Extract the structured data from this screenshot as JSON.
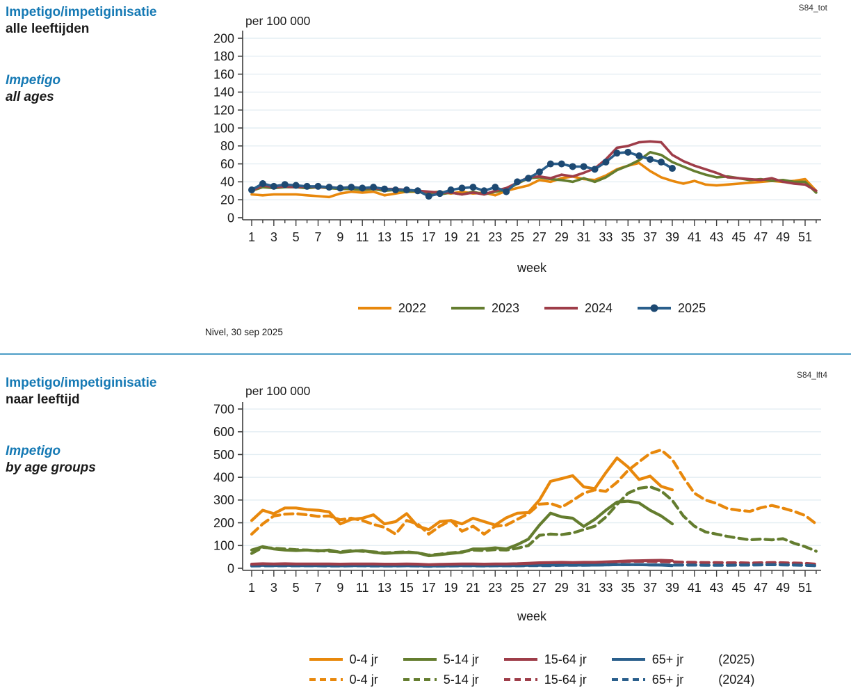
{
  "page": {
    "title_color": "#1579B4",
    "divider_color": "#4C9DC6",
    "grid_color": "#E4EEF3",
    "axis_color": "#3C3C3C"
  },
  "source_note": "Nivel, 30 sep 2025",
  "chart_data": [
    {
      "id": "impetigo-all-ages",
      "code_label": "S84_tot",
      "type": "line",
      "title_nl1": "Impetigo/impetiginisatie",
      "title_nl2": "alle leeftijden",
      "title_en1": "Impetigo",
      "title_en2": "all ages",
      "unit_label": "per 100 000",
      "xlabel": "week",
      "x_range": [
        1,
        52
      ],
      "xticks_major": [
        1,
        3,
        5,
        7,
        9,
        11,
        13,
        15,
        17,
        19,
        21,
        23,
        25,
        27,
        29,
        31,
        33,
        35,
        37,
        39,
        41,
        43,
        45,
        47,
        49,
        51
      ],
      "ylim": [
        0,
        200
      ],
      "ytick_step": 20,
      "grid": "horizontal",
      "legend_position": "bottom",
      "series": [
        {
          "name": "2022",
          "color": "#E8880C",
          "style": "solid",
          "marker": false,
          "values": [
            26,
            25,
            26,
            26,
            26,
            25,
            24,
            23,
            27,
            29,
            28,
            29,
            25,
            27,
            29,
            29,
            28,
            29,
            27,
            29,
            27,
            28,
            25,
            30,
            33,
            36,
            42,
            40,
            44,
            46,
            43,
            42,
            47,
            54,
            58,
            61,
            52,
            45,
            41,
            38,
            41,
            37,
            36,
            37,
            38,
            39,
            40,
            41,
            40,
            41,
            43,
            30
          ]
        },
        {
          "name": "2023",
          "color": "#647D2F",
          "style": "solid",
          "marker": false,
          "values": [
            30,
            34,
            33,
            34,
            34,
            33,
            34,
            33,
            32,
            32,
            31,
            32,
            30,
            31,
            29,
            30,
            28,
            26,
            28,
            26,
            29,
            26,
            29,
            31,
            38,
            44,
            45,
            43,
            42,
            40,
            44,
            40,
            45,
            53,
            58,
            64,
            73,
            70,
            62,
            57,
            52,
            48,
            45,
            46,
            44,
            42,
            43,
            41,
            42,
            40,
            40,
            28
          ]
        },
        {
          "name": "2024",
          "color": "#9E3D49",
          "style": "solid",
          "marker": false,
          "values": [
            30,
            36,
            34,
            35,
            34,
            35,
            34,
            34,
            33,
            34,
            33,
            33,
            32,
            32,
            31,
            30,
            29,
            28,
            28,
            26,
            28,
            26,
            30,
            33,
            39,
            45,
            46,
            44,
            48,
            46,
            50,
            55,
            65,
            78,
            80,
            84,
            85,
            84,
            70,
            63,
            58,
            54,
            50,
            45,
            44,
            43,
            42,
            44,
            40,
            38,
            37,
            30
          ]
        },
        {
          "name": "2025",
          "color": "#2A5F8C",
          "style": "solid",
          "marker": true,
          "marker_color": "#1D4972",
          "values": [
            31,
            38,
            35,
            37,
            36,
            35,
            35,
            34,
            33,
            34,
            33,
            34,
            32,
            31,
            31,
            30,
            24,
            27,
            31,
            33,
            34,
            30,
            34,
            29,
            40,
            44,
            51,
            60,
            60,
            57,
            57,
            54,
            62,
            72,
            73,
            69,
            65,
            62,
            55
          ]
        }
      ],
      "legend": {
        "items": [
          {
            "label": "2022",
            "color": "#E8880C",
            "style": "solid",
            "marker": false
          },
          {
            "label": "2023",
            "color": "#647D2F",
            "style": "solid",
            "marker": false
          },
          {
            "label": "2024",
            "color": "#9E3D49",
            "style": "solid",
            "marker": false
          },
          {
            "label": "2025",
            "color": "#2A5F8C",
            "style": "solid",
            "marker": true,
            "marker_color": "#1D4972"
          }
        ]
      }
    },
    {
      "id": "impetigo-by-age",
      "code_label": "S84_lft4",
      "type": "line",
      "title_nl1": "Impetigo/impetiginisatie",
      "title_nl2": "naar leeftijd",
      "title_en1": "Impetigo",
      "title_en2": "by age groups",
      "unit_label": "per 100 000",
      "xlabel": "week",
      "x_range": [
        1,
        52
      ],
      "xticks_major": [
        1,
        3,
        5,
        7,
        9,
        11,
        13,
        15,
        17,
        19,
        21,
        23,
        25,
        27,
        29,
        31,
        33,
        35,
        37,
        39,
        41,
        43,
        45,
        47,
        49,
        51
      ],
      "ylim": [
        0,
        700
      ],
      "ytick_step": 100,
      "grid": "horizontal",
      "legend_position": "bottom",
      "series": [
        {
          "name": "0-4 jr (2024)",
          "color": "#E8880C",
          "style": "dashed",
          "marker": false,
          "values": [
            150,
            195,
            230,
            238,
            240,
            235,
            228,
            230,
            213,
            220,
            210,
            193,
            180,
            150,
            210,
            195,
            150,
            185,
            210,
            163,
            185,
            150,
            185,
            190,
            215,
            240,
            282,
            285,
            268,
            298,
            330,
            345,
            338,
            378,
            430,
            468,
            505,
            520,
            478,
            400,
            330,
            300,
            285,
            262,
            255,
            250,
            266,
            276,
            264,
            250,
            232,
            195
          ]
        },
        {
          "name": "5-14 jr (2024)",
          "color": "#647D2F",
          "style": "dashed",
          "marker": false,
          "values": [
            65,
            92,
            88,
            85,
            82,
            80,
            78,
            75,
            72,
            78,
            75,
            72,
            68,
            70,
            72,
            68,
            58,
            62,
            68,
            72,
            80,
            78,
            82,
            80,
            88,
            100,
            145,
            150,
            148,
            155,
            170,
            185,
            225,
            280,
            330,
            352,
            358,
            340,
            298,
            230,
            185,
            160,
            150,
            140,
            132,
            125,
            128,
            125,
            130,
            110,
            95,
            75
          ]
        },
        {
          "name": "15-64 jr (2024)",
          "color": "#9E3D49",
          "style": "dashed",
          "marker": false,
          "values": [
            15,
            18,
            18,
            18,
            18,
            18,
            17,
            17,
            17,
            17,
            17,
            17,
            16,
            16,
            17,
            16,
            15,
            15,
            16,
            17,
            17,
            16,
            17,
            17,
            18,
            19,
            20,
            21,
            21,
            22,
            23,
            24,
            26,
            28,
            30,
            31,
            30,
            29,
            28,
            27,
            26,
            25,
            25,
            24,
            24,
            23,
            24,
            25,
            24,
            23,
            22,
            18
          ]
        },
        {
          "name": "65+ jr (2024)",
          "color": "#2A5F8C",
          "style": "dashed",
          "marker": false,
          "values": [
            10,
            11,
            11,
            11,
            11,
            11,
            11,
            10,
            10,
            11,
            11,
            10,
            10,
            10,
            11,
            10,
            9,
            10,
            10,
            11,
            11,
            10,
            11,
            11,
            11,
            12,
            12,
            12,
            13,
            13,
            13,
            14,
            15,
            16,
            16,
            16,
            15,
            15,
            14,
            14,
            14,
            13,
            13,
            13,
            14,
            14,
            15,
            16,
            15,
            14,
            13,
            11
          ]
        },
        {
          "name": "0-4 jr (2025)",
          "color": "#E8880C",
          "style": "solid",
          "marker": false,
          "values": [
            210,
            255,
            240,
            265,
            265,
            258,
            255,
            248,
            195,
            215,
            220,
            235,
            195,
            205,
            240,
            185,
            170,
            205,
            210,
            195,
            220,
            205,
            190,
            222,
            242,
            245,
            300,
            382,
            394,
            407,
            358,
            350,
            420,
            485,
            445,
            390,
            405,
            360,
            345
          ]
        },
        {
          "name": "5-14 jr (2025)",
          "color": "#647D2F",
          "style": "solid",
          "marker": false,
          "values": [
            80,
            95,
            85,
            80,
            78,
            80,
            76,
            80,
            70,
            75,
            78,
            70,
            65,
            68,
            70,
            68,
            55,
            60,
            65,
            70,
            85,
            85,
            90,
            85,
            104,
            128,
            190,
            242,
            226,
            220,
            184,
            215,
            255,
            291,
            295,
            287,
            255,
            230,
            195
          ]
        },
        {
          "name": "65+ jr (2025)",
          "color": "#2A5F8C",
          "style": "solid",
          "marker": false,
          "values": [
            12,
            13,
            12,
            13,
            12,
            12,
            12,
            12,
            11,
            12,
            12,
            12,
            11,
            11,
            12,
            11,
            10,
            10,
            11,
            12,
            12,
            11,
            12,
            12,
            12,
            13,
            13,
            14,
            14,
            14,
            14,
            14,
            15,
            16,
            16,
            16,
            15,
            14,
            12
          ]
        },
        {
          "name": "15-64 jr (2025)",
          "color": "#9E3D49",
          "style": "solid",
          "marker": false,
          "values": [
            18,
            20,
            19,
            20,
            19,
            19,
            19,
            19,
            18,
            19,
            19,
            19,
            18,
            18,
            19,
            18,
            16,
            17,
            18,
            19,
            19,
            18,
            19,
            19,
            20,
            22,
            24,
            25,
            26,
            25,
            26,
            26,
            28,
            30,
            32,
            33,
            34,
            35,
            33
          ]
        }
      ],
      "legend_rows": [
        {
          "suffix": "(2025)",
          "items": [
            {
              "label": "0-4 jr",
              "color": "#E8880C",
              "style": "solid"
            },
            {
              "label": "5-14 jr",
              "color": "#647D2F",
              "style": "solid"
            },
            {
              "label": "15-64 jr",
              "color": "#9E3D49",
              "style": "solid"
            },
            {
              "label": "65+ jr",
              "color": "#2A5F8C",
              "style": "solid"
            }
          ]
        },
        {
          "suffix": "(2024)",
          "items": [
            {
              "label": "0-4 jr",
              "color": "#E8880C",
              "style": "dashed"
            },
            {
              "label": "5-14 jr",
              "color": "#647D2F",
              "style": "dashed"
            },
            {
              "label": "15-64 jr",
              "color": "#9E3D49",
              "style": "dashed"
            },
            {
              "label": "65+ jr",
              "color": "#2A5F8C",
              "style": "dashed"
            }
          ]
        }
      ]
    }
  ]
}
